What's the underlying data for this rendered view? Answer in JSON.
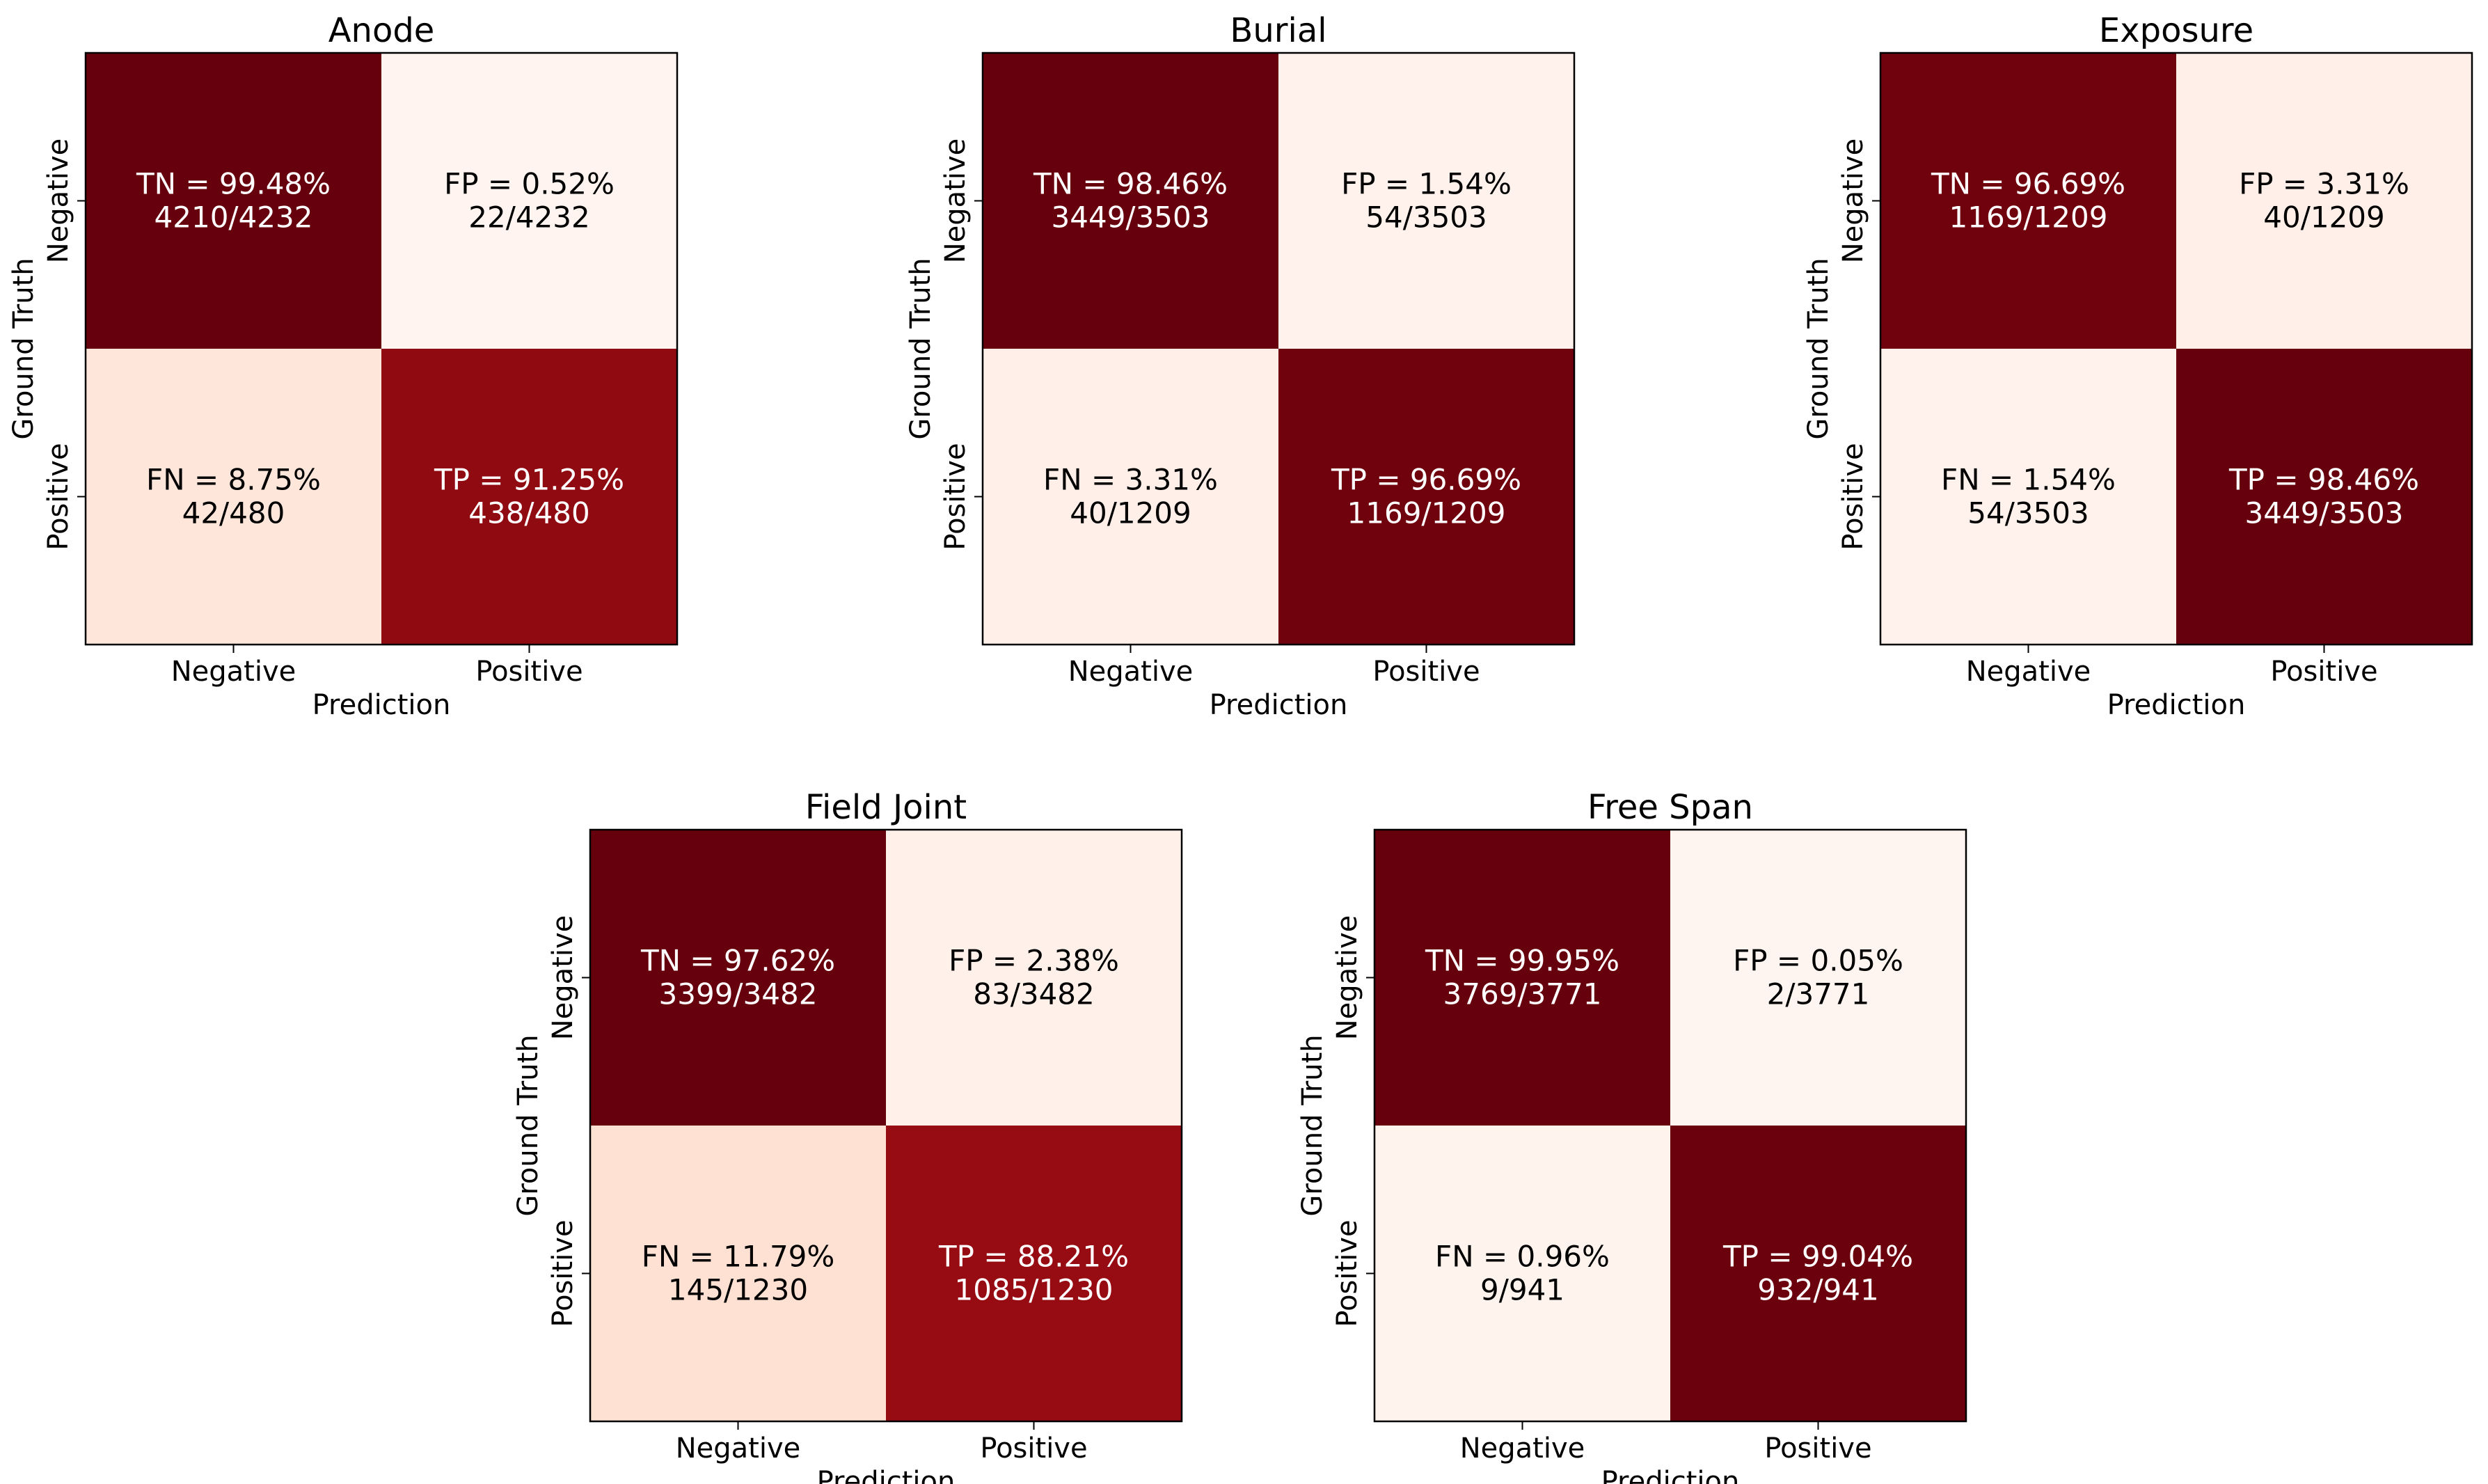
{
  "chart_data": [
    {
      "type": "heatmap",
      "title": "Anode",
      "xlabel": "Prediction",
      "ylabel": "Ground Truth",
      "x_tick_labels": [
        "Negative",
        "Positive"
      ],
      "y_tick_labels": [
        "Negative",
        "Positive"
      ],
      "colormap": "Reds",
      "cells": [
        {
          "label": "TN = 99.48%",
          "count": "4210/4232",
          "percent": 99.48,
          "row": 0,
          "col": 0
        },
        {
          "label": "FP = 0.52%",
          "count": "22/4232",
          "percent": 0.52,
          "row": 0,
          "col": 1
        },
        {
          "label": "FN = 8.75%",
          "count": "42/480",
          "percent": 8.75,
          "row": 1,
          "col": 0
        },
        {
          "label": "TP = 91.25%",
          "count": "438/480",
          "percent": 91.25,
          "row": 1,
          "col": 1
        }
      ]
    },
    {
      "type": "heatmap",
      "title": "Burial",
      "xlabel": "Prediction",
      "ylabel": "Ground Truth",
      "x_tick_labels": [
        "Negative",
        "Positive"
      ],
      "y_tick_labels": [
        "Negative",
        "Positive"
      ],
      "colormap": "Reds",
      "cells": [
        {
          "label": "TN = 98.46%",
          "count": "3449/3503",
          "percent": 98.46,
          "row": 0,
          "col": 0
        },
        {
          "label": "FP = 1.54%",
          "count": "54/3503",
          "percent": 1.54,
          "row": 0,
          "col": 1
        },
        {
          "label": "FN = 3.31%",
          "count": "40/1209",
          "percent": 3.31,
          "row": 1,
          "col": 0
        },
        {
          "label": "TP = 96.69%",
          "count": "1169/1209",
          "percent": 96.69,
          "row": 1,
          "col": 1
        }
      ]
    },
    {
      "type": "heatmap",
      "title": "Exposure",
      "xlabel": "Prediction",
      "ylabel": "Ground Truth",
      "x_tick_labels": [
        "Negative",
        "Positive"
      ],
      "y_tick_labels": [
        "Negative",
        "Positive"
      ],
      "colormap": "Reds",
      "cells": [
        {
          "label": "TN = 96.69%",
          "count": "1169/1209",
          "percent": 96.69,
          "row": 0,
          "col": 0
        },
        {
          "label": "FP = 3.31%",
          "count": "40/1209",
          "percent": 3.31,
          "row": 0,
          "col": 1
        },
        {
          "label": "FN = 1.54%",
          "count": "54/3503",
          "percent": 1.54,
          "row": 1,
          "col": 0
        },
        {
          "label": "TP = 98.46%",
          "count": "3449/3503",
          "percent": 98.46,
          "row": 1,
          "col": 1
        }
      ]
    },
    {
      "type": "heatmap",
      "title": "Field Joint",
      "xlabel": "Prediction",
      "ylabel": "Ground Truth",
      "x_tick_labels": [
        "Negative",
        "Positive"
      ],
      "y_tick_labels": [
        "Negative",
        "Positive"
      ],
      "colormap": "Reds",
      "cells": [
        {
          "label": "TN = 97.62%",
          "count": "3399/3482",
          "percent": 97.62,
          "row": 0,
          "col": 0
        },
        {
          "label": "FP = 2.38%",
          "count": "83/3482",
          "percent": 2.38,
          "row": 0,
          "col": 1
        },
        {
          "label": "FN = 11.79%",
          "count": "145/1230",
          "percent": 11.79,
          "row": 1,
          "col": 0
        },
        {
          "label": "TP = 88.21%",
          "count": "1085/1230",
          "percent": 88.21,
          "row": 1,
          "col": 1
        }
      ]
    },
    {
      "type": "heatmap",
      "title": "Free Span",
      "xlabel": "Prediction",
      "ylabel": "Ground Truth",
      "x_tick_labels": [
        "Negative",
        "Positive"
      ],
      "y_tick_labels": [
        "Negative",
        "Positive"
      ],
      "colormap": "Reds",
      "cells": [
        {
          "label": "TN = 99.95%",
          "count": "3769/3771",
          "percent": 99.95,
          "row": 0,
          "col": 0
        },
        {
          "label": "FP = 0.05%",
          "count": "2/3771",
          "percent": 0.05,
          "row": 0,
          "col": 1
        },
        {
          "label": "FN = 0.96%",
          "count": "9/941",
          "percent": 0.96,
          "row": 1,
          "col": 0
        },
        {
          "label": "TP = 99.04%",
          "count": "932/941",
          "percent": 99.04,
          "row": 1,
          "col": 1
        }
      ]
    }
  ]
}
